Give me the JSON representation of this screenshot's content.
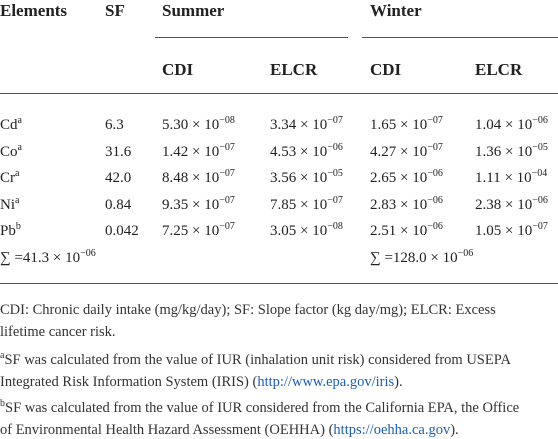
{
  "table": {
    "header": {
      "elements": "Elements",
      "sf": "SF",
      "summer": "Summer",
      "winter": "Winter"
    },
    "subheaders": [
      "CDI",
      "ELCR",
      "CDI",
      "ELCR"
    ],
    "rows": [
      {
        "element": "Cd",
        "note": "a",
        "sf": "6.3",
        "cells": [
          {
            "base": "5.30 × 10",
            "exp": "−08"
          },
          {
            "base": "3.34 × 10",
            "exp": "−07"
          },
          {
            "base": "1.65 × 10",
            "exp": "−07"
          },
          {
            "base": "1.04 × 10",
            "exp": "−06"
          }
        ]
      },
      {
        "element": "Co",
        "note": "a",
        "sf": "31.6",
        "cells": [
          {
            "base": "1.42 × 10",
            "exp": "−07"
          },
          {
            "base": "4.53 × 10",
            "exp": "−06"
          },
          {
            "base": "4.27 × 10",
            "exp": "−07"
          },
          {
            "base": "1.36 × 10",
            "exp": "−05"
          }
        ]
      },
      {
        "element": "Cr",
        "note": "a",
        "sf": "42.0",
        "cells": [
          {
            "base": "8.48 × 10",
            "exp": "−07"
          },
          {
            "base": "3.56 × 10",
            "exp": "−05"
          },
          {
            "base": "2.65 × 10",
            "exp": "−06"
          },
          {
            "base": "1.11 × 10",
            "exp": "−04"
          }
        ]
      },
      {
        "element": "Ni",
        "note": "a",
        "sf": "0.84",
        "cells": [
          {
            "base": "9.35 × 10",
            "exp": "−07"
          },
          {
            "base": "7.85 × 10",
            "exp": "−07"
          },
          {
            "base": "2.83 × 10",
            "exp": "−06"
          },
          {
            "base": "2.38 × 10",
            "exp": "−06"
          }
        ]
      },
      {
        "element": "Pb",
        "note": "b",
        "sf": "0.042",
        "cells": [
          {
            "base": "7.25 × 10",
            "exp": "−07"
          },
          {
            "base": "3.05 × 10",
            "exp": "−08"
          },
          {
            "base": "2.51 × 10",
            "exp": "−06"
          },
          {
            "base": "1.05 × 10",
            "exp": "−07"
          }
        ]
      }
    ],
    "sums": [
      {
        "base": "∑ =41.3 × 10",
        "exp": "−06"
      },
      {
        "base": "∑ =128.0 × 10",
        "exp": "−06"
      }
    ]
  },
  "footnotes": {
    "definitions": [
      "CDI: Chronic daily intake (mg/kg/day); SF: Slope factor (kg day/mg); ELCR: Excess",
      "lifetime cancer risk."
    ],
    "a": {
      "mark": "a",
      "line1": "SF was calculated from the value of IUR (inhalation unit risk) considered from USEPA",
      "before": "Integrated Risk Information System (IRIS) (",
      "link": "http://www.epa.gov/iris",
      "after": ")."
    },
    "b": {
      "mark": "b",
      "line1": "SF was calculated from the value of IUR considered from the California EPA, the Office",
      "before": "of Environmental Health Hazard Assessment (OEHHA) (",
      "link": "https://oehha.ca.gov",
      "after": ")."
    }
  }
}
